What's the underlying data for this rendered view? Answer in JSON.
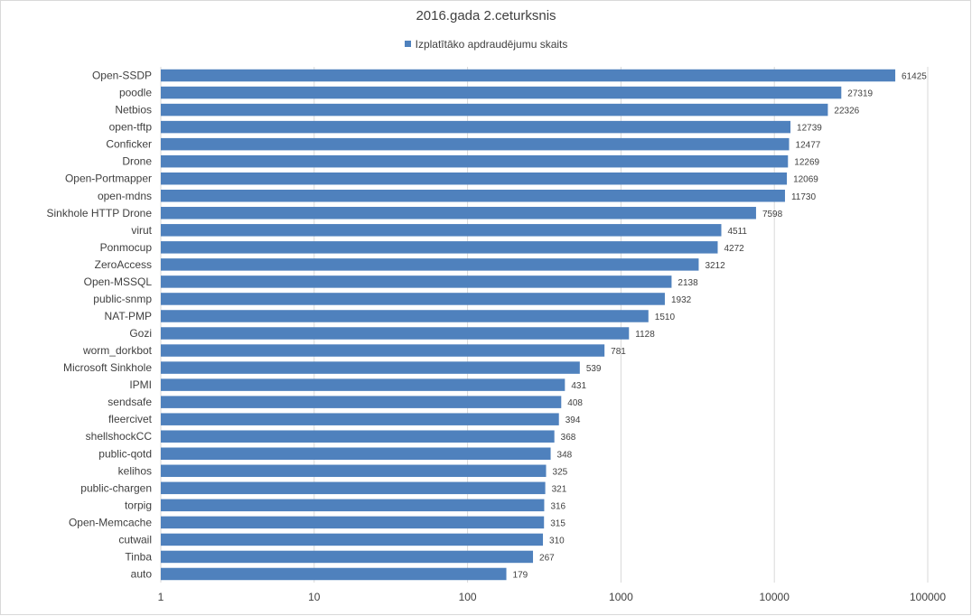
{
  "chart_data": {
    "type": "bar",
    "orientation": "horizontal",
    "title": "2016.gada 2.ceturksnis",
    "series": [
      {
        "name": "Izplatītāko apdraudējumu skaits",
        "color": "#4f81bd",
        "values": [
          61425,
          27319,
          22326,
          12739,
          12477,
          12269,
          12069,
          11730,
          7598,
          4511,
          4272,
          3212,
          2138,
          1932,
          1510,
          1128,
          781,
          539,
          431,
          408,
          394,
          368,
          348,
          325,
          321,
          316,
          315,
          310,
          267,
          179
        ]
      }
    ],
    "categories": [
      "Open-SSDP",
      "poodle",
      "Netbios",
      "open-tftp",
      "Conficker",
      "Drone",
      "Open-Portmapper",
      "open-mdns",
      "Sinkhole HTTP Drone",
      "virut",
      "Ponmocup",
      "ZeroAccess",
      "Open-MSSQL",
      "public-snmp",
      "NAT-PMP",
      "Gozi",
      "worm_dorkbot",
      "Microsoft Sinkhole",
      "IPMI",
      "sendsafe",
      "fleercivet",
      "shellshockCC",
      "public-qotd",
      "kelihos",
      "public-chargen",
      "torpig",
      "Open-Memcache",
      "cutwail",
      "Tinba",
      "auto"
    ],
    "x_scale": "log",
    "xlim": [
      1,
      100000
    ],
    "x_ticks": [
      "1",
      "10",
      "100",
      "1000",
      "10000",
      "100000"
    ],
    "grid": true,
    "legend_position": "top"
  }
}
